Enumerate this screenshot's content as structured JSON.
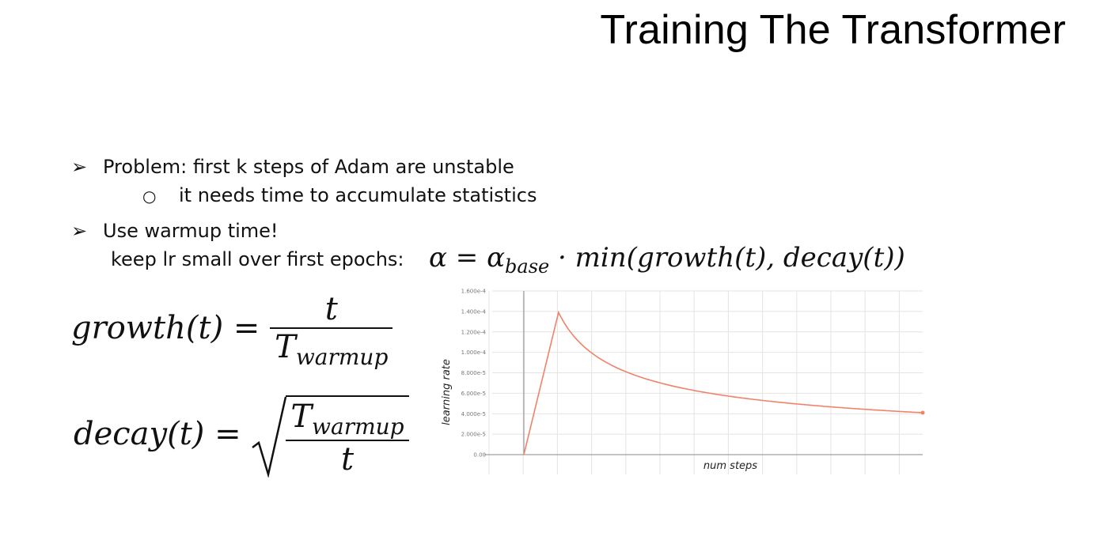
{
  "slide": {
    "title": "Training The Transformer",
    "bullets": {
      "problem": "Problem: first k steps of Adam are unstable",
      "problem_sub": "it needs time to accumulate statistics",
      "warmup": "Use warmup time!",
      "keep_lr": "keep lr small over first epochs:"
    },
    "bullet_glyph": "➢",
    "sub_glyph": "○",
    "formula": {
      "alpha": "α = α",
      "base": "base",
      "rest": "· min(growth(t), decay(t))",
      "growth_lhs": "growth(t) =",
      "decay_lhs": "decay(t) =",
      "num_t": "t",
      "T": "T",
      "warmup": "warmup"
    }
  },
  "chart_data": {
    "type": "line",
    "xlabel": "num steps",
    "ylabel": "learning rate",
    "ylim": [
      0,
      0.00016
    ],
    "yticks": [
      {
        "value": 0,
        "label": "0.00"
      },
      {
        "value": 2e-05,
        "label": "2.000e-5"
      },
      {
        "value": 4e-05,
        "label": "4.000e-5"
      },
      {
        "value": 6e-05,
        "label": "6.000e-5"
      },
      {
        "value": 8e-05,
        "label": "8.000e-5"
      },
      {
        "value": 0.0001,
        "label": "1.000e-4"
      },
      {
        "value": 0.00012,
        "label": "1.200e-4"
      },
      {
        "value": 0.00014,
        "label": "1.400e-4"
      },
      {
        "value": 0.00016,
        "label": "1.600e-4"
      }
    ],
    "xlim": [
      0,
      11.5
    ],
    "warmup_steps": 1,
    "peak": 0.000139,
    "end_x": 11.5,
    "grid": true,
    "line_color": "#f0826a",
    "grid_color": "#e4e4e4"
  }
}
